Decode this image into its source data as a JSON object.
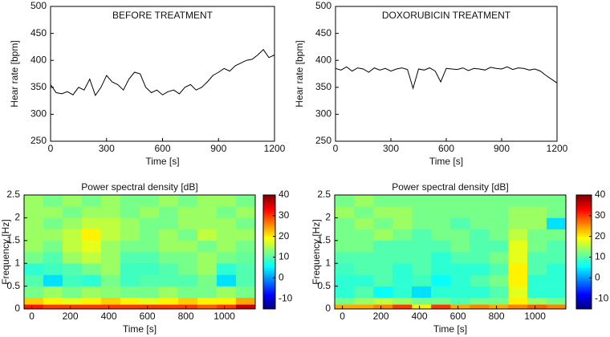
{
  "chart_data": [
    {
      "type": "line",
      "annotation": "BEFORE TREATMENT",
      "xlabel": "Time [s]",
      "ylabel": "Hear rate [bpm]",
      "color": "#000000",
      "x": [
        0,
        30,
        60,
        90,
        120,
        150,
        180,
        210,
        240,
        270,
        300,
        330,
        360,
        390,
        420,
        450,
        480,
        510,
        540,
        570,
        600,
        630,
        660,
        690,
        720,
        750,
        780,
        810,
        840,
        870,
        900,
        930,
        960,
        990,
        1020,
        1050,
        1080,
        1110,
        1140,
        1170,
        1200
      ],
      "values": [
        355,
        340,
        338,
        342,
        336,
        350,
        345,
        365,
        335,
        350,
        372,
        360,
        355,
        345,
        365,
        378,
        375,
        350,
        340,
        345,
        336,
        342,
        345,
        338,
        350,
        355,
        345,
        350,
        360,
        372,
        378,
        385,
        380,
        390,
        395,
        400,
        402,
        410,
        420,
        405,
        410
      ],
      "xlim": [
        0,
        1200
      ],
      "ylim": [
        250,
        500
      ],
      "xticks": [
        0,
        300,
        600,
        900,
        1200
      ],
      "yticks": [
        250,
        300,
        350,
        400,
        450,
        500
      ]
    },
    {
      "type": "line",
      "annotation": "DOXORUBICIN TREATMENT",
      "xlabel": "Time [s]",
      "ylabel": "Hear rate [bpm]",
      "color": "#000000",
      "x": [
        0,
        30,
        60,
        90,
        120,
        150,
        180,
        210,
        240,
        270,
        300,
        330,
        360,
        390,
        420,
        450,
        480,
        510,
        540,
        570,
        600,
        630,
        660,
        690,
        720,
        750,
        780,
        810,
        840,
        870,
        900,
        930,
        960,
        990,
        1020,
        1050,
        1080,
        1110,
        1140,
        1170,
        1200
      ],
      "values": [
        385,
        382,
        388,
        380,
        386,
        384,
        378,
        386,
        382,
        385,
        380,
        384,
        386,
        383,
        348,
        384,
        382,
        386,
        380,
        360,
        385,
        384,
        383,
        386,
        381,
        385,
        384,
        382,
        387,
        385,
        384,
        388,
        383,
        386,
        385,
        382,
        384,
        380,
        372,
        365,
        358
      ],
      "xlim": [
        0,
        1200
      ],
      "ylim": [
        250,
        500
      ],
      "xticks": [
        0,
        300,
        600,
        900,
        1200
      ],
      "yticks": [
        250,
        300,
        350,
        400,
        450,
        500
      ]
    },
    {
      "type": "heatmap",
      "title": "Power spectral density [dB]",
      "xlabel": "Time [s]",
      "ylabel": "Frequency [Hz]",
      "colormap": "jet",
      "x_bins": [
        -40,
        60,
        160,
        260,
        360,
        460,
        560,
        660,
        760,
        860,
        960,
        1060,
        1160
      ],
      "y_bins": [
        0,
        0.1,
        0.25,
        0.5,
        0.75,
        1,
        1.25,
        1.5,
        1.75,
        2,
        2.25,
        2.5
      ],
      "z": [
        [
          32,
          30,
          30,
          30,
          30,
          30,
          30,
          30,
          30,
          28,
          30,
          36
        ],
        [
          22,
          20,
          18,
          20,
          22,
          20,
          18,
          20,
          22,
          20,
          20,
          24
        ],
        [
          12,
          14,
          12,
          14,
          13,
          12,
          12,
          14,
          12,
          12,
          14,
          12
        ],
        [
          10,
          4,
          9,
          8,
          12,
          9,
          10,
          10,
          10,
          12,
          4,
          10
        ],
        [
          8,
          9,
          10,
          12,
          14,
          9,
          9,
          10,
          12,
          14,
          8,
          10
        ],
        [
          12,
          10,
          14,
          16,
          14,
          10,
          10,
          12,
          12,
          14,
          12,
          11
        ],
        [
          14,
          12,
          16,
          18,
          14,
          12,
          12,
          14,
          14,
          12,
          14,
          12
        ],
        [
          14,
          14,
          16,
          20,
          16,
          14,
          12,
          14,
          12,
          16,
          14,
          14
        ],
        [
          14,
          12,
          14,
          16,
          16,
          14,
          12,
          12,
          14,
          14,
          14,
          12
        ],
        [
          14,
          14,
          12,
          14,
          14,
          12,
          14,
          12,
          14,
          14,
          12,
          14
        ],
        [
          14,
          12,
          14,
          12,
          14,
          12,
          12,
          14,
          12,
          14,
          14,
          12
        ]
      ],
      "xlim": [
        -40,
        1160
      ],
      "ylim": [
        0,
        2.5
      ],
      "xticks": [
        0,
        200,
        400,
        600,
        800,
        1000
      ],
      "yticks": [
        0,
        0.5,
        1,
        1.5,
        2,
        2.5
      ],
      "clim": [
        -15,
        40
      ],
      "cticks": [
        -10,
        0,
        10,
        20,
        30,
        40
      ]
    },
    {
      "type": "heatmap",
      "title": "Power spectral density [dB]",
      "xlabel": "Time [s]",
      "ylabel": "Frequency [Hz]",
      "colormap": "jet",
      "x_bins": [
        -40,
        60,
        160,
        260,
        360,
        460,
        560,
        660,
        760,
        860,
        960,
        1060,
        1160
      ],
      "y_bins": [
        0,
        0.1,
        0.25,
        0.5,
        0.75,
        1,
        1.25,
        1.5,
        1.75,
        2,
        2.25,
        2.5
      ],
      "z": [
        [
          24,
          24,
          26,
          30,
          20,
          30,
          24,
          26,
          24,
          26,
          28,
          26
        ],
        [
          12,
          14,
          16,
          14,
          12,
          12,
          10,
          12,
          12,
          20,
          14,
          12
        ],
        [
          8,
          10,
          6,
          8,
          4,
          8,
          8,
          8,
          10,
          18,
          8,
          8
        ],
        [
          8,
          8,
          10,
          8,
          9,
          6,
          8,
          10,
          12,
          20,
          8,
          8
        ],
        [
          9,
          10,
          10,
          8,
          10,
          8,
          8,
          8,
          10,
          20,
          10,
          8
        ],
        [
          10,
          10,
          10,
          10,
          10,
          8,
          10,
          10,
          12,
          18,
          10,
          10
        ],
        [
          12,
          12,
          10,
          10,
          10,
          10,
          12,
          10,
          10,
          18,
          12,
          10
        ],
        [
          12,
          12,
          14,
          12,
          10,
          12,
          12,
          10,
          12,
          16,
          12,
          12
        ],
        [
          12,
          14,
          12,
          14,
          12,
          12,
          10,
          12,
          12,
          14,
          14,
          4
        ],
        [
          14,
          12,
          14,
          14,
          12,
          12,
          12,
          12,
          12,
          14,
          14,
          12
        ],
        [
          12,
          14,
          12,
          12,
          12,
          12,
          12,
          12,
          12,
          12,
          12,
          12
        ]
      ],
      "xlim": [
        -40,
        1160
      ],
      "ylim": [
        0,
        2.5
      ],
      "xticks": [
        0,
        200,
        400,
        600,
        800,
        1000
      ],
      "yticks": [
        0,
        0.5,
        1,
        1.5,
        2,
        2.5
      ],
      "clim": [
        -15,
        40
      ],
      "cticks": [
        -10,
        0,
        10,
        20,
        30,
        40
      ]
    }
  ]
}
